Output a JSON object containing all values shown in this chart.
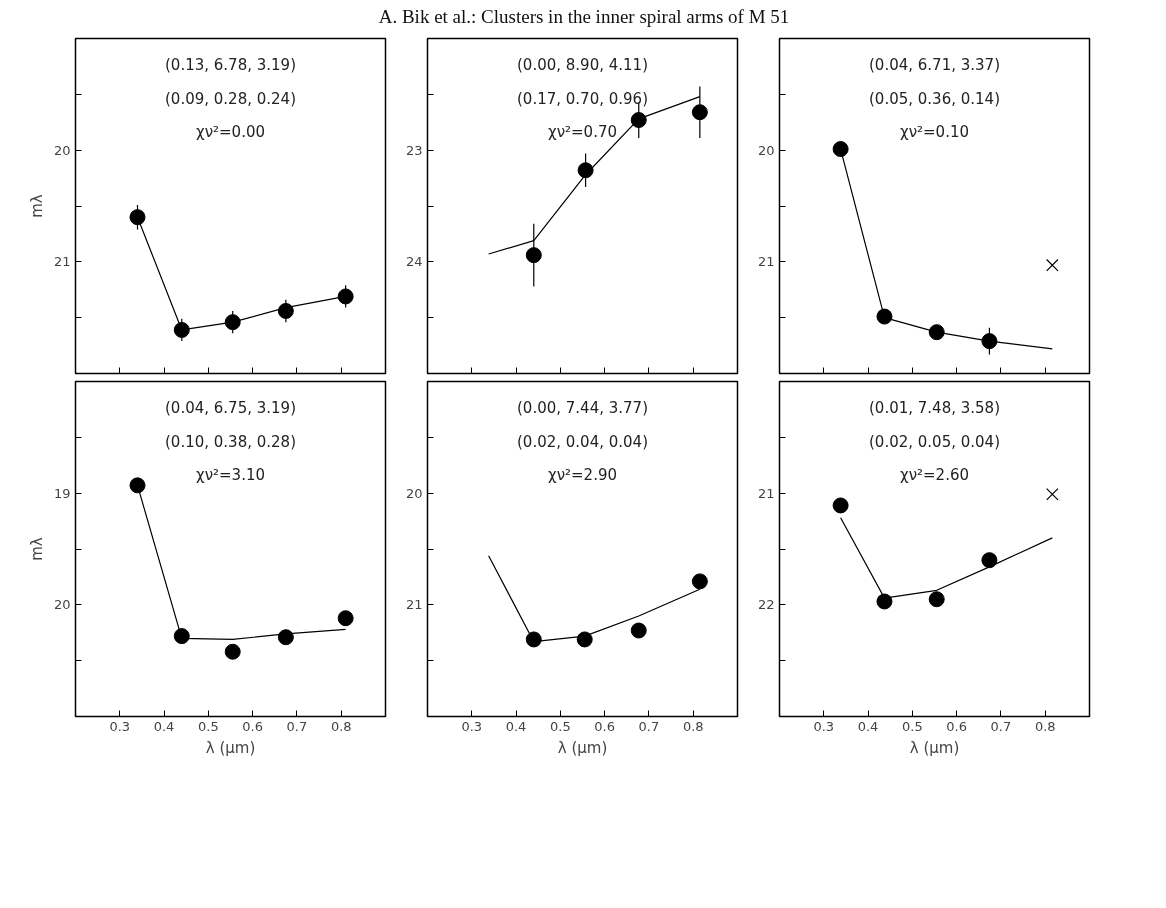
{
  "chart_data": [
    {
      "type": "scatter",
      "ylabel": "mλ",
      "annotations": [
        "(0.13, 6.78, 3.19)",
        "(0.09, 0.28, 0.24)",
        "χν²=0.00"
      ],
      "xlim": [
        0.2,
        0.9
      ],
      "ylim": [
        22,
        19
      ],
      "xticks": [
        0.3,
        0.4,
        0.5,
        0.6,
        0.7,
        0.8
      ],
      "yticks": [
        {
          "value": 19.5,
          "label": null
        },
        20,
        {
          "value": 20.5,
          "label": null
        },
        21,
        {
          "value": 21.5,
          "label": null
        }
      ],
      "tick_labels": "y",
      "grid": false,
      "series": [
        {
          "type": "line",
          "color": "#000000",
          "x": [
            0.34,
            0.44,
            0.555,
            0.675,
            0.81
          ],
          "values": [
            20.6,
            21.61,
            21.54,
            21.41,
            21.31
          ]
        },
        {
          "marker": "circle",
          "color": "#000000",
          "x": [
            0.34,
            0.44,
            0.555,
            0.675,
            0.81
          ],
          "values": [
            20.6,
            21.61,
            21.54,
            21.44,
            21.31
          ],
          "errors": [
            0.11,
            0.1,
            0.1,
            0.1,
            0.1
          ]
        }
      ]
    },
    {
      "type": "scatter",
      "title": "A. Bik et al.: Clusters in the inner spiral arms of M 51",
      "annotations": [
        "(0.00, 8.90, 4.11)",
        "(0.17, 0.70, 0.96)",
        "χν²=0.70"
      ],
      "xlim": [
        0.2,
        0.9
      ],
      "ylim": [
        25,
        22
      ],
      "xticks": [
        0.3,
        0.4,
        0.5,
        0.6,
        0.7,
        0.8
      ],
      "yticks": [
        {
          "value": 22.5,
          "label": null
        },
        23,
        {
          "value": 23.5,
          "label": null
        },
        24,
        {
          "value": 24.5,
          "label": null
        }
      ],
      "tick_labels": "y",
      "grid": false,
      "series": [
        {
          "type": "line",
          "color": "#000000",
          "x": [
            0.338,
            0.44,
            0.557,
            0.677,
            0.815
          ],
          "values": [
            23.93,
            23.81,
            23.22,
            22.72,
            22.52
          ]
        },
        {
          "marker": "circle",
          "color": "#000000",
          "x": [
            0.44,
            0.557,
            0.677,
            0.815
          ],
          "values": [
            23.94,
            23.18,
            22.73,
            22.66
          ],
          "errors": [
            0.28,
            0.15,
            0.16,
            0.23
          ]
        }
      ]
    },
    {
      "type": "scatter",
      "annotations": [
        "(0.04, 6.71, 3.37)",
        "(0.05, 0.36, 0.14)",
        "χν²=0.10"
      ],
      "xlim": [
        0.2,
        0.9
      ],
      "ylim": [
        22,
        19
      ],
      "xticks": [
        0.3,
        0.4,
        0.5,
        0.6,
        0.7,
        0.8
      ],
      "yticks": [
        {
          "value": 19.5,
          "label": null
        },
        20,
        {
          "value": 20.5,
          "label": null
        },
        21,
        {
          "value": 21.5,
          "label": null
        }
      ],
      "tick_labels": "y",
      "grid": false,
      "series": [
        {
          "type": "line",
          "color": "#000000",
          "x": [
            0.338,
            0.437,
            0.555,
            0.674,
            0.816
          ],
          "values": [
            19.99,
            21.5,
            21.63,
            21.71,
            21.78
          ]
        },
        {
          "marker": "circle",
          "color": "#000000",
          "x": [
            0.338,
            0.437,
            0.555,
            0.674
          ],
          "values": [
            19.99,
            21.49,
            21.63,
            21.71
          ],
          "errors": [
            null,
            null,
            null,
            0.12
          ]
        },
        {
          "marker": "cross",
          "color": "#000000",
          "x": [
            0.816
          ],
          "values": [
            21.03
          ]
        }
      ]
    },
    {
      "type": "scatter",
      "xlabel": "λ (μm)",
      "ylabel": "mλ",
      "annotations": [
        "(0.04, 6.75, 3.19)",
        "(0.10, 0.38, 0.28)",
        "χν²=3.10"
      ],
      "xlim": [
        0.2,
        0.9
      ],
      "ylim": [
        21,
        18
      ],
      "xticks": [
        0.3,
        0.4,
        0.5,
        0.6,
        0.7,
        0.8
      ],
      "yticks": [
        {
          "value": 18.5,
          "label": null
        },
        19,
        {
          "value": 19.5,
          "label": null
        },
        20,
        {
          "value": 20.5,
          "label": null
        }
      ],
      "grid": false,
      "series": [
        {
          "type": "line",
          "color": "#000000",
          "x": [
            0.34,
            0.44,
            0.555,
            0.675,
            0.81
          ],
          "values": [
            18.93,
            20.3,
            20.31,
            20.26,
            20.22
          ]
        },
        {
          "marker": "circle",
          "color": "#000000",
          "x": [
            0.34,
            0.44,
            0.555,
            0.675,
            0.81
          ],
          "values": [
            18.93,
            20.28,
            20.42,
            20.29,
            20.12
          ]
        }
      ]
    },
    {
      "type": "scatter",
      "xlabel": "λ (μm)",
      "annotations": [
        "(0.00, 7.44, 3.77)",
        "(0.02, 0.04, 0.04)",
        "χν²=2.90"
      ],
      "xlim": [
        0.2,
        0.9
      ],
      "ylim": [
        22,
        19
      ],
      "xticks": [
        0.3,
        0.4,
        0.5,
        0.6,
        0.7,
        0.8
      ],
      "yticks": [
        {
          "value": 19.5,
          "label": null
        },
        20,
        {
          "value": 20.5,
          "label": null
        },
        21,
        {
          "value": 21.5,
          "label": null
        }
      ],
      "grid": false,
      "series": [
        {
          "type": "line",
          "color": "#000000",
          "x": [
            0.338,
            0.44,
            0.555,
            0.677,
            0.815
          ],
          "values": [
            20.56,
            21.33,
            21.28,
            21.1,
            20.86
          ]
        },
        {
          "marker": "circle",
          "color": "#000000",
          "x": [
            0.44,
            0.555,
            0.677,
            0.815
          ],
          "values": [
            21.31,
            21.31,
            21.23,
            20.79
          ]
        }
      ]
    },
    {
      "type": "scatter",
      "xlabel": "λ (μm)",
      "annotations": [
        "(0.01, 7.48, 3.58)",
        "(0.02, 0.05, 0.04)",
        "χν²=2.60"
      ],
      "xlim": [
        0.2,
        0.9
      ],
      "ylim": [
        23,
        20
      ],
      "xticks": [
        0.3,
        0.4,
        0.5,
        0.6,
        0.7,
        0.8
      ],
      "yticks": [
        {
          "value": 20.5,
          "label": null
        },
        21,
        {
          "value": 21.5,
          "label": null
        },
        22,
        {
          "value": 22.5,
          "label": null
        }
      ],
      "grid": false,
      "series": [
        {
          "type": "line",
          "color": "#000000",
          "x": [
            0.338,
            0.437,
            0.555,
            0.674,
            0.816
          ],
          "values": [
            21.22,
            21.94,
            21.87,
            21.66,
            21.4
          ]
        },
        {
          "marker": "circle",
          "color": "#000000",
          "x": [
            0.338,
            0.437,
            0.555,
            0.674
          ],
          "values": [
            21.11,
            21.97,
            21.95,
            21.6
          ]
        },
        {
          "marker": "cross",
          "color": "#000000",
          "x": [
            0.816
          ],
          "values": [
            21.01
          ]
        }
      ]
    }
  ]
}
